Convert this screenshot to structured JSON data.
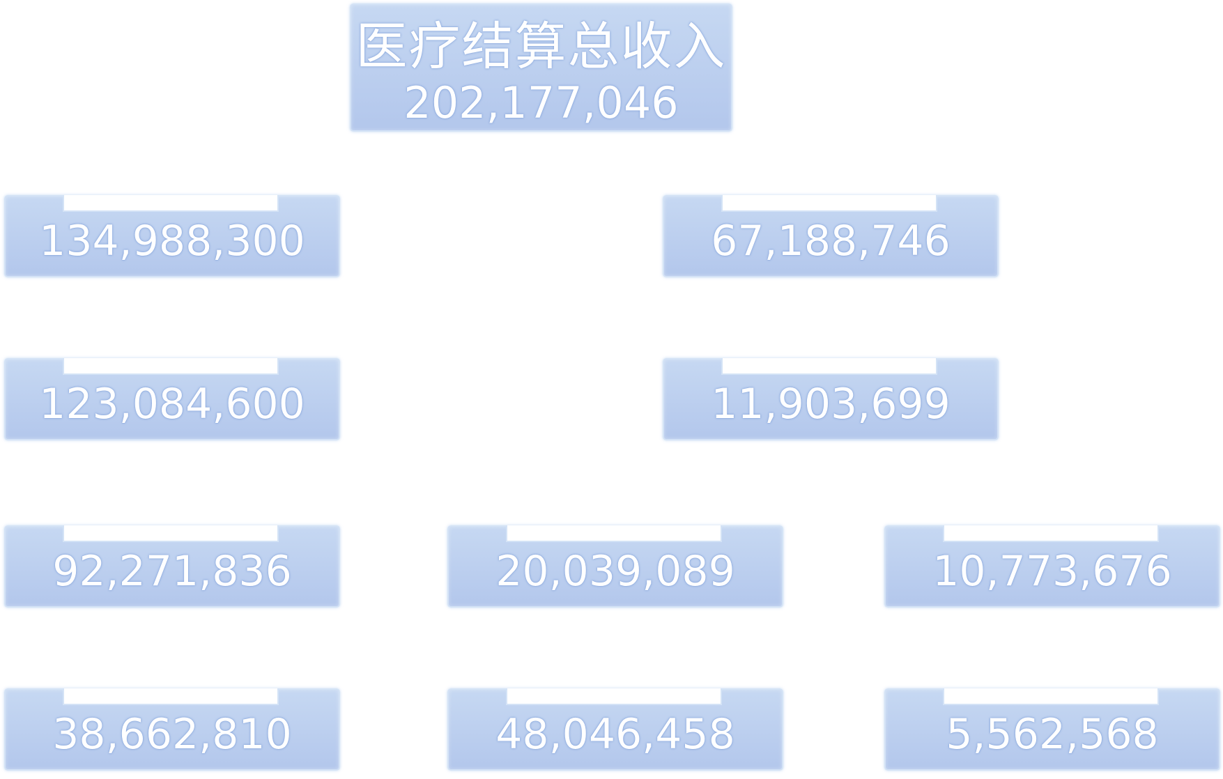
{
  "root": {
    "title": "医疗结算总收入",
    "value": "202,177,046"
  },
  "nodes": {
    "l1_left": "134,988,300",
    "l1_right": "67,188,746",
    "l2_left": "123,084,600",
    "l2_right": "11,903,699",
    "l3_left": "92,271,836",
    "l3_mid": "20,039,089",
    "l3_right": "10,773,676",
    "l4_left": "38,662,810",
    "l4_mid": "48,046,458",
    "l4_right": "5,562,568"
  },
  "colors": {
    "card_fill": "#b8cbee",
    "card_border": "#d4e3f6",
    "text": "#ffffff",
    "background": "#ffffff"
  }
}
